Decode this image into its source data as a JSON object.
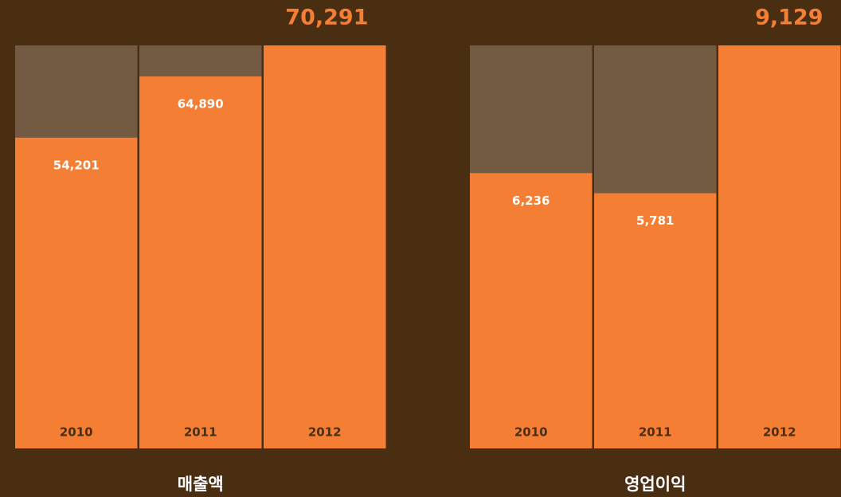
{
  "chart_data": [
    {
      "type": "bar",
      "title": "매출액",
      "categories": [
        "2010",
        "2011",
        "2012"
      ],
      "values": [
        54201,
        64890,
        70291
      ],
      "value_labels": [
        "54,201",
        "64,890",
        "70,291"
      ],
      "color": "#f47f34"
    },
    {
      "type": "bar",
      "title": "영업이익",
      "categories": [
        "2010",
        "2011",
        "2012"
      ],
      "values": [
        6236,
        5781,
        9129
      ],
      "value_labels": [
        "6,236",
        "5,781",
        "9,129"
      ],
      "color": "#f47f34"
    }
  ]
}
